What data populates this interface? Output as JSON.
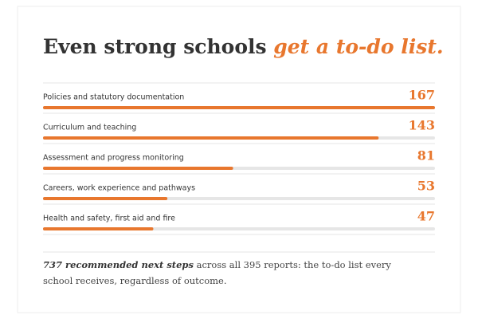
{
  "chart_data": {
    "type": "bar",
    "orientation": "horizontal",
    "title": "Even strong schools ",
    "title_emphasis": "get a to-do list.",
    "categories": [
      "Policies and statutory documentation",
      "Curriculum and teaching",
      "Assessment and progress monitoring",
      "Careers, work experience and pathways",
      "Health and safety, first aid and fire"
    ],
    "values": [
      167,
      143,
      81,
      53,
      47
    ],
    "color": "#e8772e",
    "track_color": "#e6e6e6",
    "xlim": [
      0,
      167
    ],
    "note_emphasis": "737 recommended next steps",
    "note": " across all 395 reports: the to-do list every school receives, regardless of outcome."
  }
}
